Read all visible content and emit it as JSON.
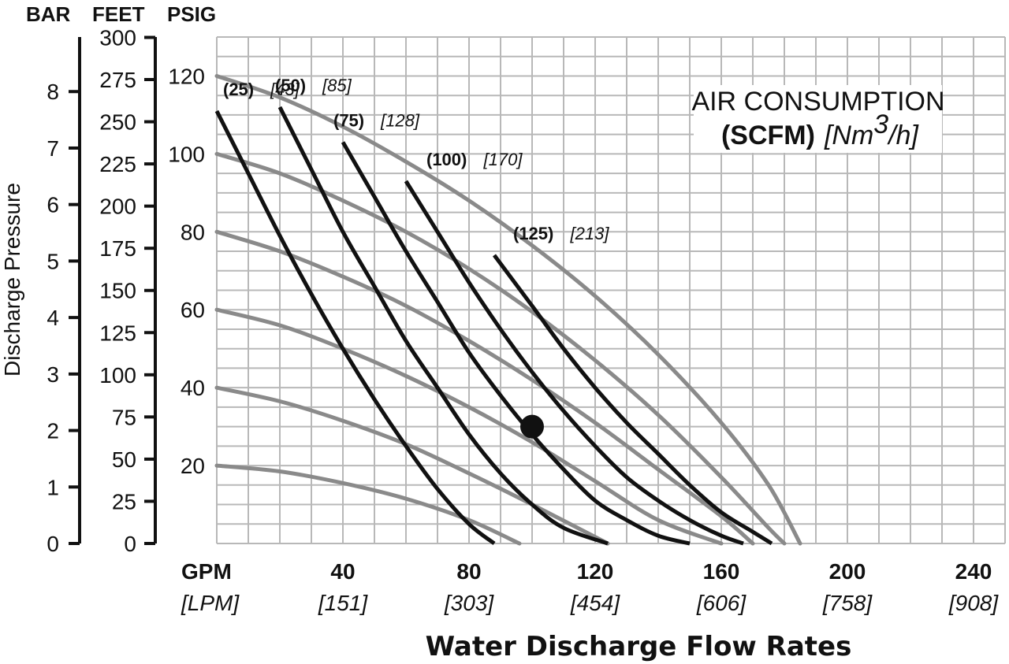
{
  "chart_data": {
    "type": "line",
    "title": "",
    "xlabel": "Water Discharge Flow Rates",
    "ylabel": "Discharge Pressure",
    "x_unit_label": "GPM",
    "x_unit_label_alt": "[LPM]",
    "xlim": [
      0,
      250
    ],
    "ylim": [
      0,
      130
    ],
    "grid": true,
    "x_ticks": [
      {
        "value": 40,
        "label": "40",
        "alt": "[151]"
      },
      {
        "value": 80,
        "label": "80",
        "alt": "[303]"
      },
      {
        "value": 120,
        "label": "120",
        "alt": "[454]"
      },
      {
        "value": 160,
        "label": "160",
        "alt": "[606]"
      },
      {
        "value": 200,
        "label": "200",
        "alt": "[758]"
      },
      {
        "value": 240,
        "label": "240",
        "alt": "[908]"
      }
    ],
    "axis_headers": {
      "bar": "BAR",
      "feet": "FEET",
      "psig": "PSIG"
    },
    "psig_ticks": [
      {
        "value": 20,
        "label": "20"
      },
      {
        "value": 40,
        "label": "40"
      },
      {
        "value": 60,
        "label": "60"
      },
      {
        "value": 80,
        "label": "80"
      },
      {
        "value": 100,
        "label": "100"
      },
      {
        "value": 120,
        "label": "120"
      }
    ],
    "feet_ticks": [
      {
        "psi": 0,
        "label": "0"
      },
      {
        "psi": 10.83,
        "label": "25"
      },
      {
        "psi": 21.65,
        "label": "50"
      },
      {
        "psi": 32.48,
        "label": "75"
      },
      {
        "psi": 43.3,
        "label": "100"
      },
      {
        "psi": 54.13,
        "label": "125"
      },
      {
        "psi": 64.95,
        "label": "150"
      },
      {
        "psi": 75.78,
        "label": "175"
      },
      {
        "psi": 86.6,
        "label": "200"
      },
      {
        "psi": 97.43,
        "label": "225"
      },
      {
        "psi": 108.25,
        "label": "250"
      },
      {
        "psi": 119.08,
        "label": "275"
      },
      {
        "psi": 129.9,
        "label": "300"
      }
    ],
    "bar_ticks": [
      {
        "psi": 0,
        "label": "0"
      },
      {
        "psi": 14.5,
        "label": "1"
      },
      {
        "psi": 29.0,
        "label": "2"
      },
      {
        "psi": 43.5,
        "label": "3"
      },
      {
        "psi": 58.0,
        "label": "4"
      },
      {
        "psi": 72.5,
        "label": "5"
      },
      {
        "psi": 87.0,
        "label": "6"
      },
      {
        "psi": 101.5,
        "label": "7"
      },
      {
        "psi": 116.0,
        "label": "8"
      }
    ],
    "legend": {
      "line1": "AIR CONSUMPTION",
      "line2_bold": "(SCFM)",
      "line2_italic_pre": "[Nm",
      "line2_sup": "3",
      "line2_italic_post": "/h]",
      "position": "top-right"
    },
    "air_pressure_curves_psig": [
      {
        "points": [
          [
            0,
            20
          ],
          [
            20,
            18.5
          ],
          [
            40,
            15.5
          ],
          [
            60,
            11.5
          ],
          [
            80,
            6
          ],
          [
            96,
            0
          ]
        ]
      },
      {
        "points": [
          [
            0,
            40
          ],
          [
            20,
            36.5
          ],
          [
            40,
            31.5
          ],
          [
            60,
            25.5
          ],
          [
            80,
            18
          ],
          [
            100,
            10
          ],
          [
            124,
            0
          ]
        ]
      },
      {
        "points": [
          [
            0,
            60
          ],
          [
            20,
            56
          ],
          [
            40,
            50
          ],
          [
            60,
            43
          ],
          [
            80,
            35
          ],
          [
            100,
            26
          ],
          [
            120,
            16
          ],
          [
            140,
            6
          ],
          [
            160,
            0
          ]
        ]
      },
      {
        "points": [
          [
            0,
            80
          ],
          [
            20,
            75
          ],
          [
            40,
            68.5
          ],
          [
            60,
            61
          ],
          [
            80,
            52
          ],
          [
            100,
            42
          ],
          [
            120,
            31
          ],
          [
            140,
            19
          ],
          [
            160,
            7
          ],
          [
            170,
            0
          ]
        ]
      },
      {
        "points": [
          [
            0,
            100
          ],
          [
            20,
            95
          ],
          [
            40,
            88
          ],
          [
            60,
            80
          ],
          [
            80,
            70.5
          ],
          [
            100,
            59.5
          ],
          [
            120,
            47
          ],
          [
            140,
            33
          ],
          [
            160,
            17
          ],
          [
            175,
            4
          ],
          [
            180,
            0
          ]
        ]
      },
      {
        "points": [
          [
            0,
            120
          ],
          [
            20,
            114.5
          ],
          [
            40,
            107
          ],
          [
            60,
            98
          ],
          [
            80,
            88
          ],
          [
            100,
            76.5
          ],
          [
            120,
            63.5
          ],
          [
            140,
            48.5
          ],
          [
            160,
            31
          ],
          [
            175,
            15
          ],
          [
            185,
            0
          ]
        ]
      }
    ],
    "air_consumption_curves": [
      {
        "scfm": "(25)",
        "nm3h": "[43]",
        "points": [
          [
            0,
            111
          ],
          [
            10,
            95
          ],
          [
            20,
            79
          ],
          [
            30,
            64
          ],
          [
            40,
            50
          ],
          [
            50,
            37
          ],
          [
            60,
            25
          ],
          [
            70,
            14
          ],
          [
            80,
            5
          ],
          [
            88,
            0
          ]
        ]
      },
      {
        "scfm": "(50)",
        "nm3h": "[85]",
        "points": [
          [
            20,
            112
          ],
          [
            30,
            96
          ],
          [
            40,
            80
          ],
          [
            50,
            66
          ],
          [
            60,
            52
          ],
          [
            70,
            40
          ],
          [
            80,
            28
          ],
          [
            90,
            18
          ],
          [
            100,
            10
          ],
          [
            110,
            4
          ],
          [
            124,
            0
          ]
        ]
      },
      {
        "scfm": "(75)",
        "nm3h": "[128]",
        "points": [
          [
            40,
            103
          ],
          [
            50,
            89
          ],
          [
            60,
            75
          ],
          [
            70,
            62
          ],
          [
            80,
            49
          ],
          [
            90,
            38
          ],
          [
            100,
            28
          ],
          [
            110,
            19
          ],
          [
            120,
            11
          ],
          [
            130,
            6
          ],
          [
            140,
            2
          ],
          [
            150,
            0
          ]
        ]
      },
      {
        "scfm": "(100)",
        "nm3h": "[170]",
        "points": [
          [
            60,
            93
          ],
          [
            70,
            80
          ],
          [
            80,
            67
          ],
          [
            90,
            55
          ],
          [
            100,
            44
          ],
          [
            110,
            34
          ],
          [
            120,
            25
          ],
          [
            130,
            17
          ],
          [
            140,
            11
          ],
          [
            150,
            6
          ],
          [
            160,
            2
          ],
          [
            167,
            0
          ]
        ]
      },
      {
        "scfm": "(125)",
        "nm3h": "[213]",
        "points": [
          [
            88,
            74
          ],
          [
            100,
            61
          ],
          [
            110,
            50
          ],
          [
            120,
            40
          ],
          [
            130,
            31
          ],
          [
            140,
            23
          ],
          [
            150,
            15
          ],
          [
            160,
            8
          ],
          [
            170,
            3
          ],
          [
            176,
            0
          ]
        ]
      }
    ],
    "operating_point": {
      "x": 100,
      "y": 30
    }
  }
}
